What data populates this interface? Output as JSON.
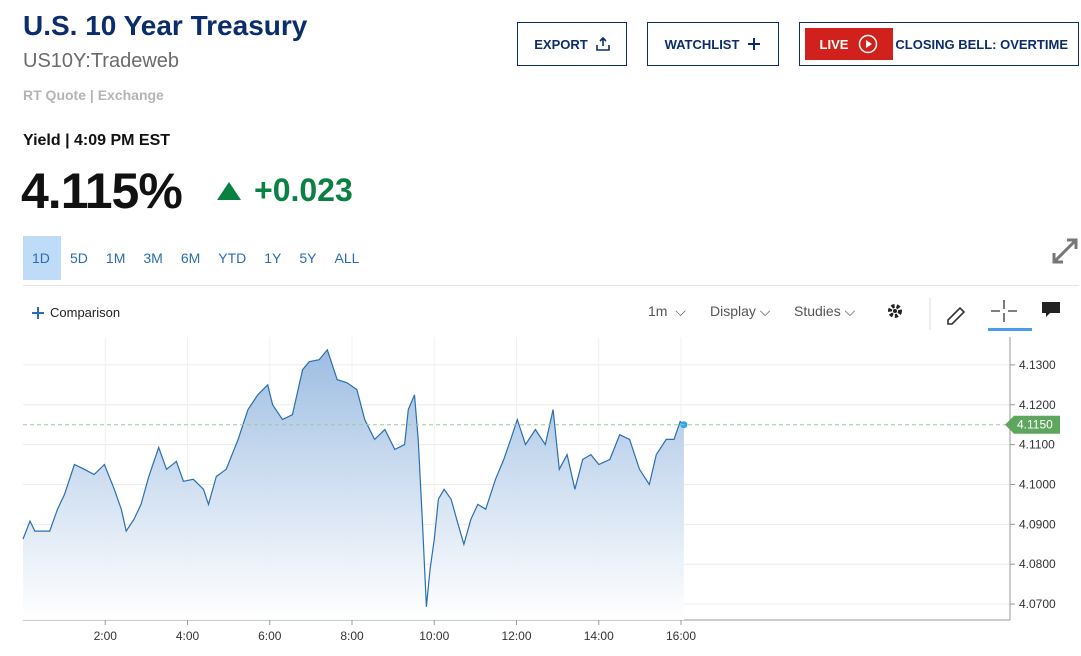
{
  "header": {
    "title": "U.S. 10 Year Treasury",
    "symbol": "US10Y:Tradeweb",
    "quote_type": "RT Quote | Exchange",
    "yield_time": "Yield | 4:09 PM EST",
    "price": "4.115%",
    "change": "+0.023"
  },
  "buttons": {
    "export": "EXPORT",
    "watchlist": "WATCHLIST",
    "live": "LIVE",
    "live_show": "CLOSING BELL: OVERTIME"
  },
  "ranges": [
    "1D",
    "5D",
    "1M",
    "3M",
    "6M",
    "YTD",
    "1Y",
    "5Y",
    "ALL"
  ],
  "toolbar": {
    "comparison": "Comparison",
    "interval": "1m",
    "display": "Display",
    "studies": "Studies"
  },
  "chart_data": {
    "type": "area",
    "color": "#2a6fb0",
    "x": [
      0,
      0.17,
      0.29,
      0.65,
      0.84,
      1.01,
      1.25,
      1.49,
      1.73,
      1.98,
      2.22,
      2.39,
      2.51,
      2.7,
      2.87,
      3.06,
      3.3,
      3.49,
      3.73,
      3.9,
      4.14,
      4.39,
      4.51,
      4.7,
      4.94,
      5.23,
      5.47,
      5.71,
      5.95,
      6.07,
      6.31,
      6.55,
      6.8,
      6.96,
      7.2,
      7.4,
      7.64,
      7.88,
      8.12,
      8.31,
      8.55,
      8.8,
      9.04,
      9.28,
      9.37,
      9.52,
      9.61,
      9.71,
      9.81,
      9.9,
      10,
      10.1,
      10.24,
      10.41,
      10.58,
      10.72,
      10.89,
      11.06,
      11.25,
      11.49,
      11.69,
      11.86,
      12.02,
      12.22,
      12.46,
      12.7,
      12.89,
      13.04,
      13.23,
      13.42,
      13.61,
      13.81,
      14,
      14.27,
      14.51,
      14.75,
      14.99,
      15.23,
      15.4,
      15.64,
      15.83,
      15.98,
      16.07
    ],
    "values": [
      4.0863,
      4.0908,
      4.0883,
      4.0883,
      4.0938,
      4.0975,
      4.105,
      4.1038,
      4.1025,
      4.105,
      4.0988,
      4.0938,
      4.0883,
      4.0913,
      4.095,
      4.102,
      4.1093,
      4.1038,
      4.1058,
      4.1008,
      4.1013,
      4.0988,
      4.095,
      4.102,
      4.1038,
      4.1113,
      4.1188,
      4.1225,
      4.125,
      4.12,
      4.1163,
      4.1175,
      4.1288,
      4.1308,
      4.1313,
      4.1338,
      4.1263,
      4.1255,
      4.1238,
      4.1163,
      4.1113,
      4.1138,
      4.1088,
      4.11,
      4.1188,
      4.1225,
      4.1113,
      4.0913,
      4.0693,
      4.0788,
      4.0863,
      4.0963,
      4.0988,
      4.0963,
      4.09,
      4.085,
      4.0913,
      4.095,
      4.0938,
      4.1013,
      4.1063,
      4.1113,
      4.1163,
      4.11,
      4.1138,
      4.11,
      4.1188,
      4.1038,
      4.1075,
      4.0988,
      4.1063,
      4.1075,
      4.105,
      4.1063,
      4.1125,
      4.1113,
      4.1038,
      4.1,
      4.1075,
      4.1113,
      4.1113,
      4.1158,
      4.115
    ],
    "xlim": [
      0,
      24
    ],
    "xticks": [
      {
        "value": 2,
        "label": "2:00"
      },
      {
        "value": 4,
        "label": "4:00"
      },
      {
        "value": 6,
        "label": "6:00"
      },
      {
        "value": 8,
        "label": "8:00"
      },
      {
        "value": 10,
        "label": "10:00"
      },
      {
        "value": 12,
        "label": "12:00"
      },
      {
        "value": 14,
        "label": "14:00"
      },
      {
        "value": 16,
        "label": "16:00"
      }
    ],
    "ylim": [
      4.066,
      4.137
    ],
    "yticks": [
      {
        "value": 4.07,
        "label": "4.0700"
      },
      {
        "value": 4.08,
        "label": "4.0800"
      },
      {
        "value": 4.09,
        "label": "4.0900"
      },
      {
        "value": 4.1,
        "label": "4.1000"
      },
      {
        "value": 4.11,
        "label": "4.1100"
      },
      {
        "value": 4.12,
        "label": "4.1200"
      },
      {
        "value": 4.13,
        "label": "4.1300"
      }
    ],
    "last_value": {
      "value": 4.115,
      "label": "4.1150"
    },
    "grid": true
  }
}
